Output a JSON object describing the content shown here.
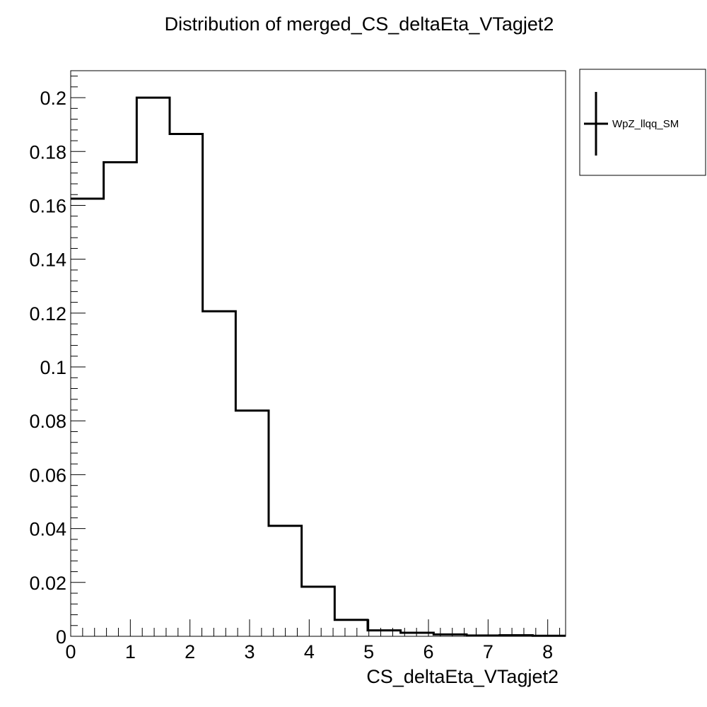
{
  "chart_data": {
    "type": "histogram",
    "title": "Distribution of merged_CS_deltaEta_VTagjet2",
    "xlabel": "CS_deltaEta_VTagjet2",
    "ylabel": "",
    "xlim": [
      0,
      8.3
    ],
    "ylim": [
      0,
      0.21
    ],
    "bin_edges": [
      0,
      0.553,
      1.107,
      1.66,
      2.213,
      2.767,
      3.32,
      3.873,
      4.427,
      4.98,
      5.533,
      6.087,
      6.64,
      7.193,
      7.747,
      8.3
    ],
    "series": [
      {
        "name": "WpZ_llqq_SM",
        "values": [
          0.1625,
          0.176,
          0.2,
          0.1865,
          0.1207,
          0.0838,
          0.041,
          0.0184,
          0.0061,
          0.0022,
          0.0013,
          0.0007,
          0.0003,
          0.0004,
          0.0002
        ]
      }
    ],
    "xticks": [
      0,
      1,
      2,
      3,
      4,
      5,
      6,
      7,
      8
    ],
    "xtick_labels": [
      "0",
      "1",
      "2",
      "3",
      "4",
      "5",
      "6",
      "7",
      "8"
    ],
    "yticks": [
      0,
      0.02,
      0.04,
      0.06,
      0.08,
      0.1,
      0.12,
      0.14,
      0.16,
      0.18,
      0.2
    ],
    "ytick_labels": [
      "0",
      "0.02",
      "0.04",
      "0.06",
      "0.08",
      "0.1",
      "0.12",
      "0.14",
      "0.16",
      "0.18",
      "0.2"
    ],
    "grid": false,
    "legend_position": "top-right outside",
    "line_color": "#000000"
  }
}
